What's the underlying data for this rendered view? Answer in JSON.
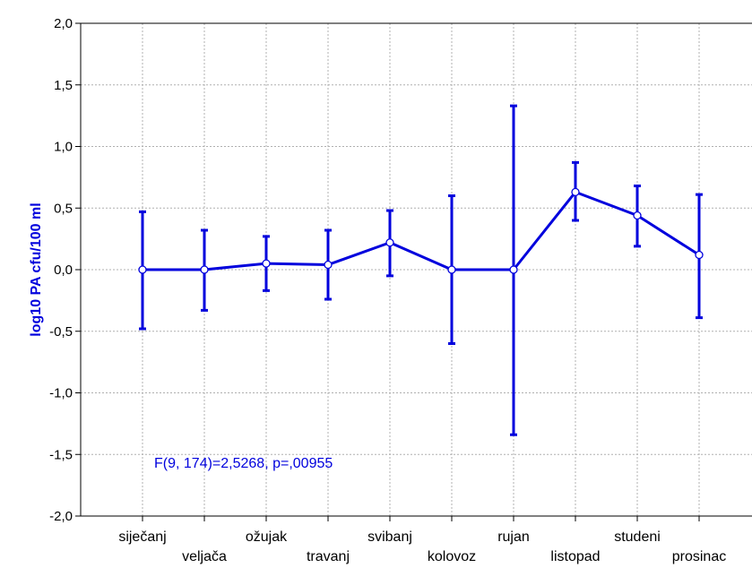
{
  "chart_data": {
    "type": "line",
    "title": "",
    "xlabel": "",
    "ylabel": "log10 PA cfu/100 ml",
    "categories": [
      "siječanj",
      "veljača",
      "ožujak",
      "travanj",
      "svibanj",
      "kolovoz",
      "rujan",
      "listopad",
      "studeni",
      "prosinac"
    ],
    "series": [
      {
        "values": [
          0.0,
          0.0,
          0.05,
          0.04,
          0.22,
          0.0,
          0.0,
          0.63,
          0.44,
          0.12
        ],
        "error_low": [
          -0.48,
          -0.33,
          -0.17,
          -0.24,
          -0.05,
          -0.6,
          -1.34,
          0.4,
          0.19,
          -0.39
        ],
        "error_high": [
          0.47,
          0.32,
          0.27,
          0.32,
          0.48,
          0.6,
          1.33,
          0.87,
          0.68,
          0.61
        ]
      }
    ],
    "ylim": [
      -2.0,
      2.0
    ],
    "yticks": [
      -2.0,
      -1.5,
      -1.0,
      -0.5,
      0.0,
      0.5,
      1.0,
      1.5,
      2.0
    ],
    "ytick_labels": [
      "-2,0",
      "-1,5",
      "-1,0",
      "-0,5",
      "0,0",
      "0,5",
      "1,0",
      "1,5",
      "2,0"
    ],
    "grid": true,
    "annotation": "F(9, 174)=2,5268, p=,00955",
    "colors": {
      "series": "#0000dd",
      "ylabel": "#0000dd",
      "annotation": "#0000dd"
    }
  }
}
